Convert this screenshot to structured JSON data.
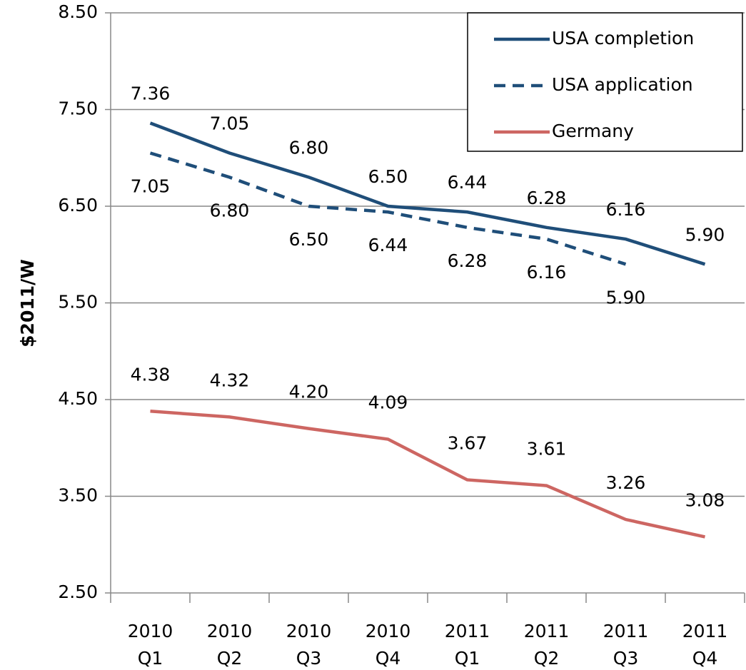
{
  "chart_data": {
    "type": "line",
    "y_label": "$2011/W",
    "categories": [
      "2010 Q1",
      "2010 Q2",
      "2010 Q3",
      "2010 Q4",
      "2011 Q1",
      "2011 Q2",
      "2011 Q3",
      "2011 Q4"
    ],
    "series": [
      {
        "name": "USA completion",
        "color": "#1f4e79",
        "dash": false,
        "values": [
          7.36,
          7.05,
          6.8,
          6.5,
          6.44,
          6.28,
          6.16,
          5.9
        ],
        "value_labels": [
          "7.36",
          "7.05",
          "6.80",
          "6.50",
          "6.44",
          "6.28",
          "6.16",
          "5.90"
        ]
      },
      {
        "name": "USA application",
        "color": "#1f4e79",
        "dash": true,
        "values": [
          7.05,
          6.8,
          6.5,
          6.44,
          6.28,
          6.16,
          5.9,
          null
        ],
        "value_labels": [
          "7.05",
          "6.80",
          "6.50",
          "6.44",
          "6.28",
          "6.16",
          "5.90",
          null
        ]
      },
      {
        "name": "Germany",
        "color": "#cd6662",
        "dash": false,
        "values": [
          4.38,
          4.32,
          4.2,
          4.09,
          3.67,
          3.61,
          3.26,
          3.08
        ],
        "value_labels": [
          "4.38",
          "4.32",
          "4.20",
          "4.09",
          "3.67",
          "3.61",
          "3.26",
          "3.08"
        ]
      }
    ],
    "ylim": [
      2.5,
      8.5
    ],
    "yticks": [
      {
        "value": 2.5,
        "label": "2.50"
      },
      {
        "value": 3.5,
        "label": "3.50"
      },
      {
        "value": 4.5,
        "label": "4.50"
      },
      {
        "value": 5.5,
        "label": "5.50"
      },
      {
        "value": 6.5,
        "label": "6.50"
      },
      {
        "value": 7.5,
        "label": "7.50"
      },
      {
        "value": 8.5,
        "label": "8.50"
      }
    ],
    "grid": true,
    "legend": "top-right"
  }
}
